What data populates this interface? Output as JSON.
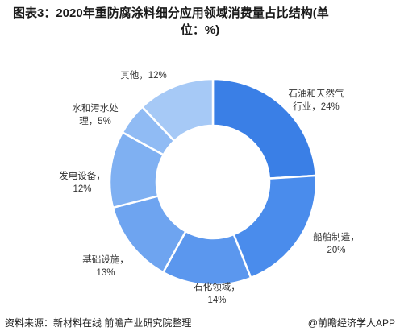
{
  "title_line1": "图表3：2020年重防腐涂料细分应用领域消费量占比结构(单",
  "title_line2": "位：%)",
  "footer": {
    "source": "资料来源：新材料在线 前瞻产业研究院整理",
    "brand": "@前瞻经济学人APP"
  },
  "chart_data": {
    "type": "pie",
    "title": "图表3：2020年重防腐涂料细分应用领域消费量占比结构(单位：%)",
    "donut": true,
    "unit": "%",
    "slices": [
      {
        "label_lines": [
          "石油和天然气",
          "行业，24%"
        ],
        "name": "石油和天然气行业",
        "value": 24,
        "color": "#3a7fe6"
      },
      {
        "label_lines": [
          "船舶制造，",
          "20%"
        ],
        "name": "船舶制造",
        "value": 20,
        "color": "#4a8cec"
      },
      {
        "label_lines": [
          "石化领域，",
          "14%"
        ],
        "name": "石化领域",
        "value": 14,
        "color": "#5b97ee"
      },
      {
        "label_lines": [
          "基础设施，",
          "13%"
        ],
        "name": "基础设施",
        "value": 13,
        "color": "#6ea4f0"
      },
      {
        "label_lines": [
          "发电设备，",
          "12%"
        ],
        "name": "发电设备",
        "value": 12,
        "color": "#7fb0f2"
      },
      {
        "label_lines": [
          "水和污水处",
          "理，5%"
        ],
        "name": "水和污水处理",
        "value": 5,
        "color": "#90bbf4"
      },
      {
        "label_lines": [
          "其他，12%"
        ],
        "name": "其他",
        "value": 12,
        "color": "#a6c9f6"
      }
    ]
  }
}
